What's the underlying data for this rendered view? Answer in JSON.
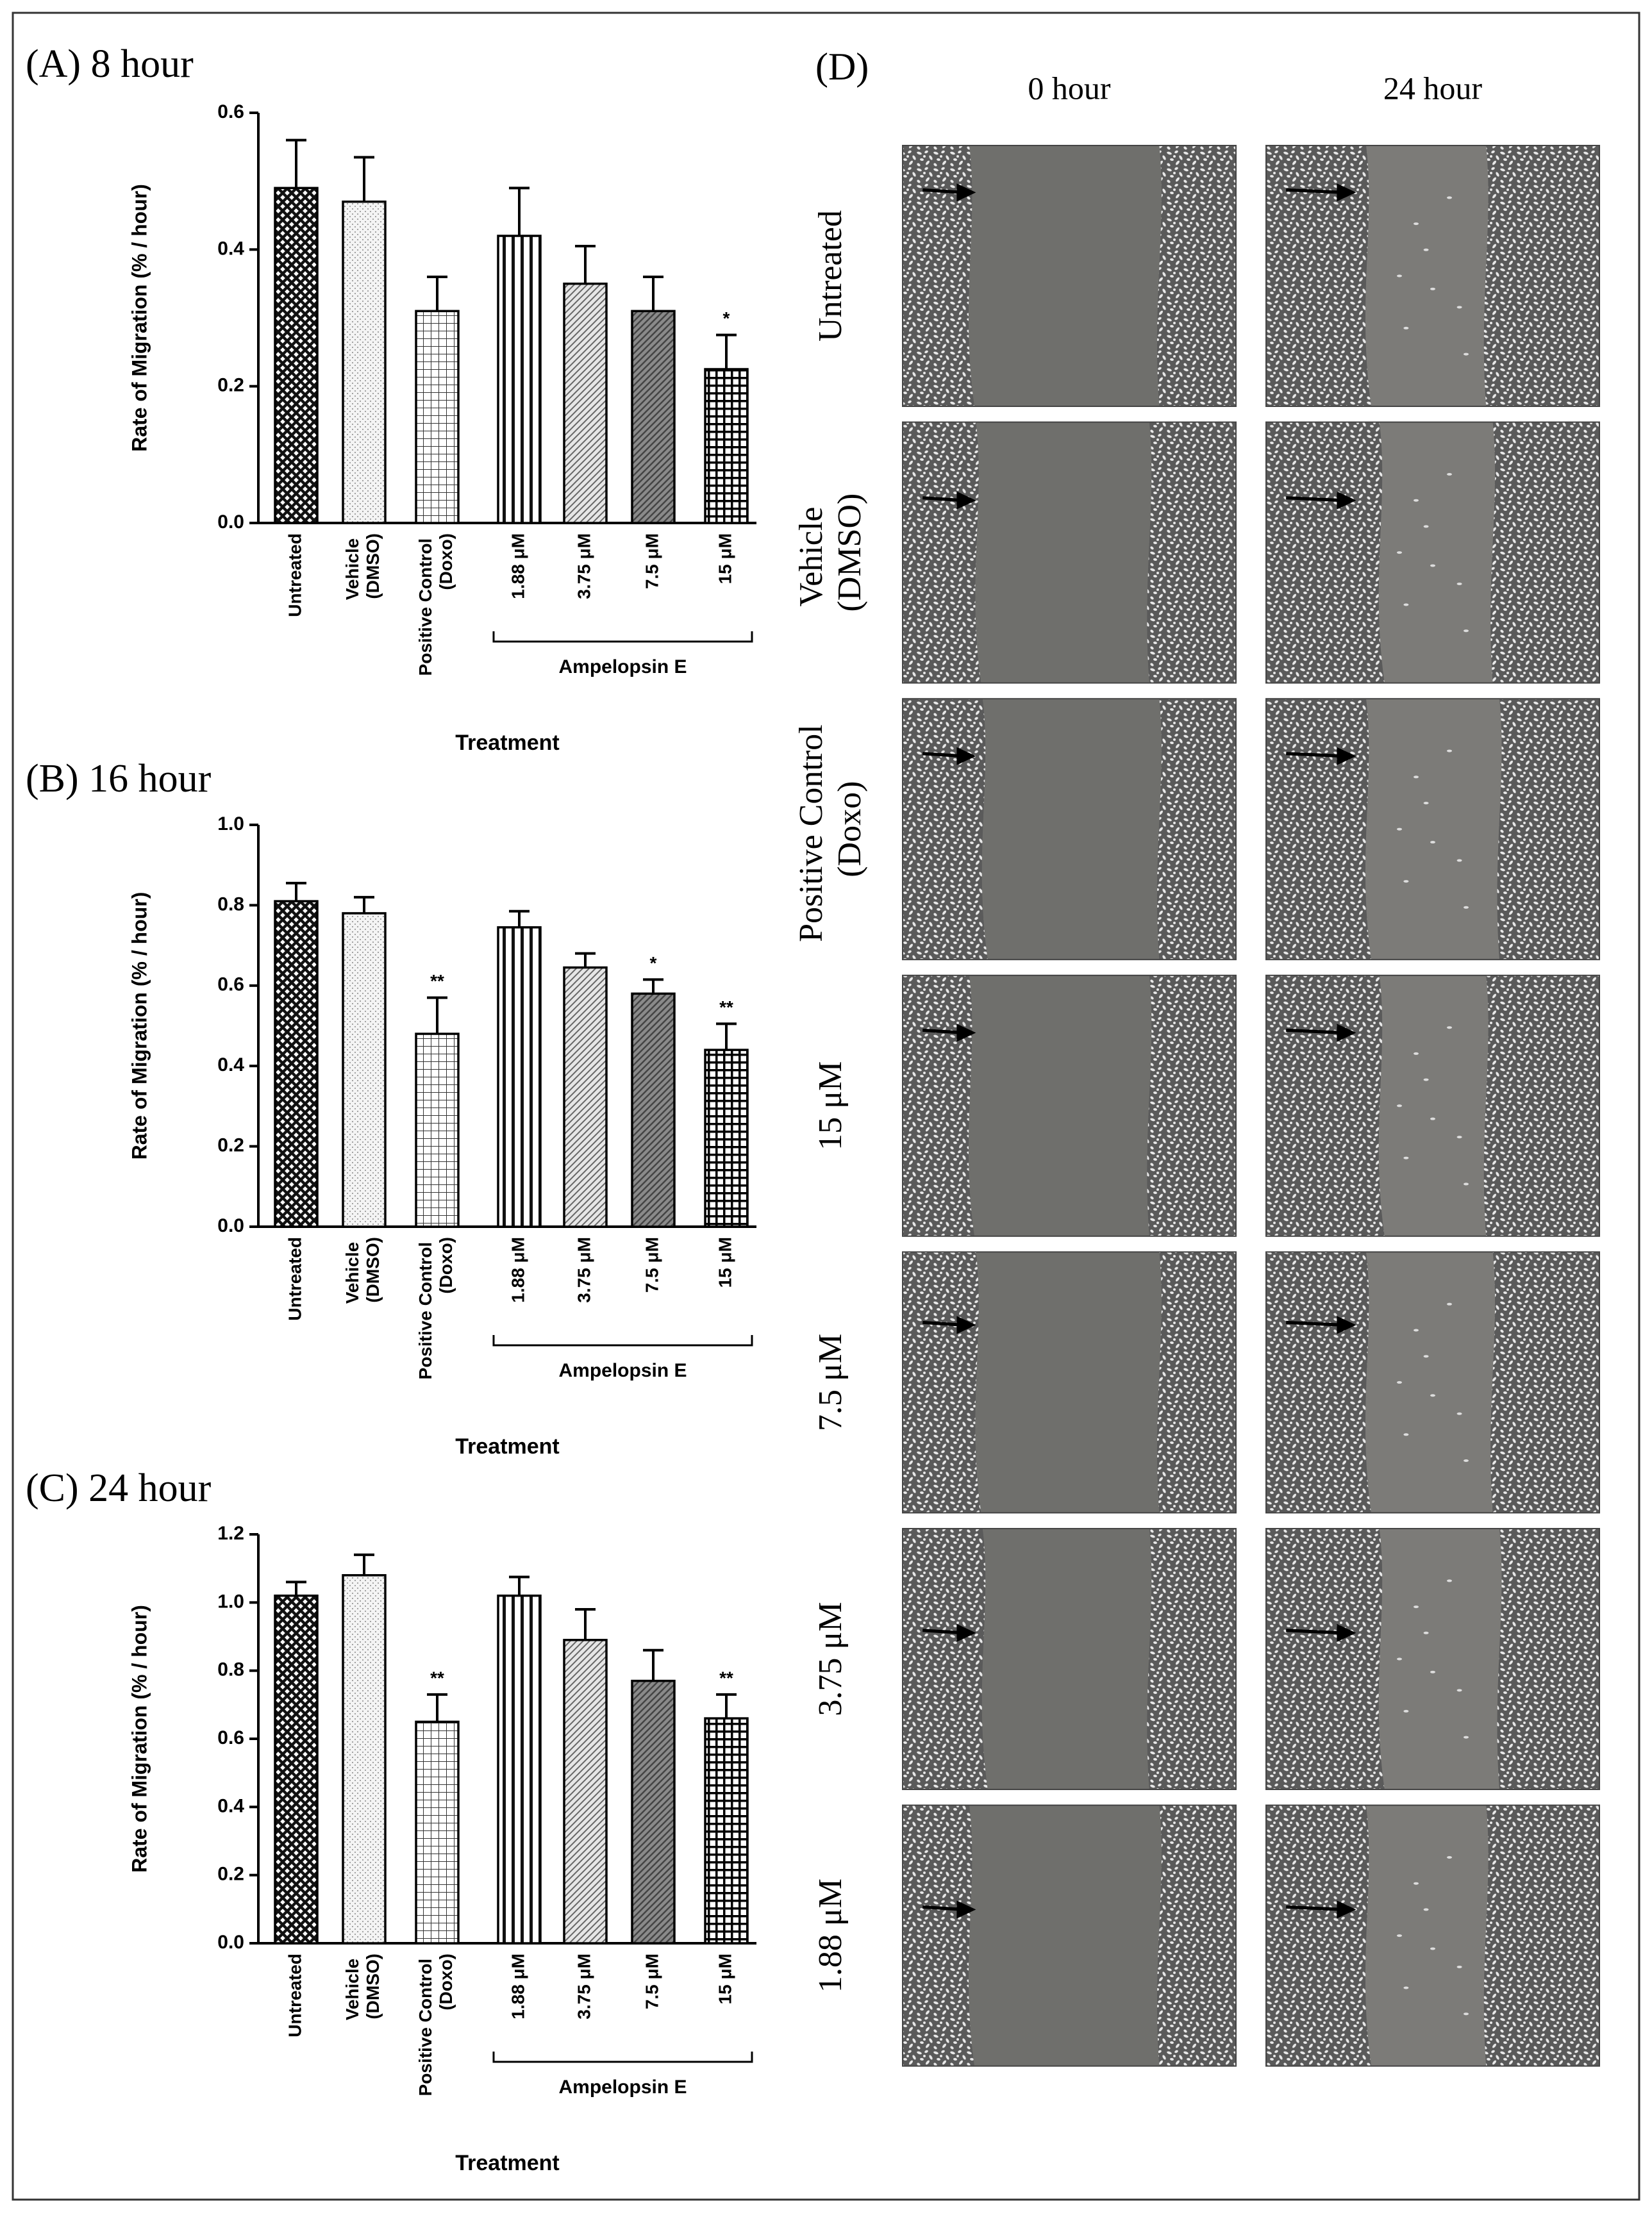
{
  "chart_data": [
    {
      "type": "bar",
      "title": "(A) 8 hour",
      "y_label": "Rate of Migration (% / hour)",
      "x_label": "Treatment",
      "categories": [
        "Untreated",
        "Vehicle\n(DMSO)",
        "Positive Control\n(Doxo)",
        "1.88 μM",
        "3.75 μM",
        "7.5 μM",
        "15 μM"
      ],
      "group_label": "Ampelopsin E",
      "values": [
        0.49,
        0.47,
        0.31,
        0.42,
        0.35,
        0.31,
        0.225
      ],
      "errors": [
        0.07,
        0.065,
        0.05,
        0.07,
        0.055,
        0.05,
        0.05
      ],
      "significance": [
        null,
        null,
        null,
        null,
        null,
        null,
        "*"
      ],
      "bar_patterns": [
        "crosshatch",
        "dots",
        "grid",
        "vertical",
        "diagonal",
        "dark-diagonal",
        "checker"
      ],
      "ylim": [
        0,
        0.6
      ],
      "yticks": [
        {
          "value": 0,
          "label": "0.0"
        },
        0.2,
        0.4,
        0.6
      ]
    },
    {
      "type": "bar",
      "title": "(B) 16 hour",
      "y_label": "Rate of Migration (% / hour)",
      "x_label": "Treatment",
      "categories": [
        "Untreated",
        "Vehicle\n(DMSO)",
        "Positive Control\n(Doxo)",
        "1.88 μM",
        "3.75 μM",
        "7.5 μM",
        "15 μM"
      ],
      "group_label": "Ampelopsin E",
      "values": [
        0.81,
        0.78,
        0.48,
        0.745,
        0.645,
        0.58,
        0.44
      ],
      "errors": [
        0.045,
        0.04,
        0.09,
        0.04,
        0.035,
        0.035,
        0.065
      ],
      "significance": [
        null,
        null,
        "**",
        null,
        null,
        "*",
        "**"
      ],
      "bar_patterns": [
        "crosshatch",
        "dots",
        "grid",
        "vertical",
        "diagonal",
        "dark-diagonal",
        "checker"
      ],
      "ylim": [
        0,
        1.0
      ],
      "yticks": [
        {
          "value": 0,
          "label": "0.0"
        },
        0.2,
        0.4,
        0.6,
        0.8,
        {
          "value": 1,
          "label": "1.0"
        }
      ]
    },
    {
      "type": "bar",
      "title": "(C) 24 hour",
      "y_label": "Rate of Migration (% / hour)",
      "x_label": "Treatment",
      "categories": [
        "Untreated",
        "Vehicle\n(DMSO)",
        "Positive Control\n(Doxo)",
        "1.88 μM",
        "3.75 μM",
        "7.5 μM",
        "15 μM"
      ],
      "group_label": "Ampelopsin E",
      "values": [
        1.02,
        1.08,
        0.65,
        1.02,
        0.89,
        0.77,
        0.66
      ],
      "errors": [
        0.04,
        0.06,
        0.08,
        0.055,
        0.09,
        0.09,
        0.07
      ],
      "significance": [
        null,
        null,
        "**",
        null,
        null,
        null,
        "**"
      ],
      "bar_patterns": [
        "crosshatch",
        "dots",
        "grid",
        "vertical",
        "diagonal",
        "dark-diagonal",
        "checker"
      ],
      "ylim": [
        0,
        1.2
      ],
      "yticks": [
        {
          "value": 0,
          "label": "0.0"
        },
        0.2,
        0.4,
        0.6,
        0.8,
        {
          "value": 1,
          "label": "1.0"
        },
        1.2
      ]
    }
  ],
  "panel_d": {
    "label": "(D)",
    "columns": [
      "0 hour",
      "24 hour"
    ],
    "rows": [
      "Untreated",
      "Vehicle\n(DMSO)",
      "Positive Control\n(Doxo)",
      "15 μM",
      "7.5 μM",
      "3.75 μM",
      "1.88 μM"
    ]
  }
}
